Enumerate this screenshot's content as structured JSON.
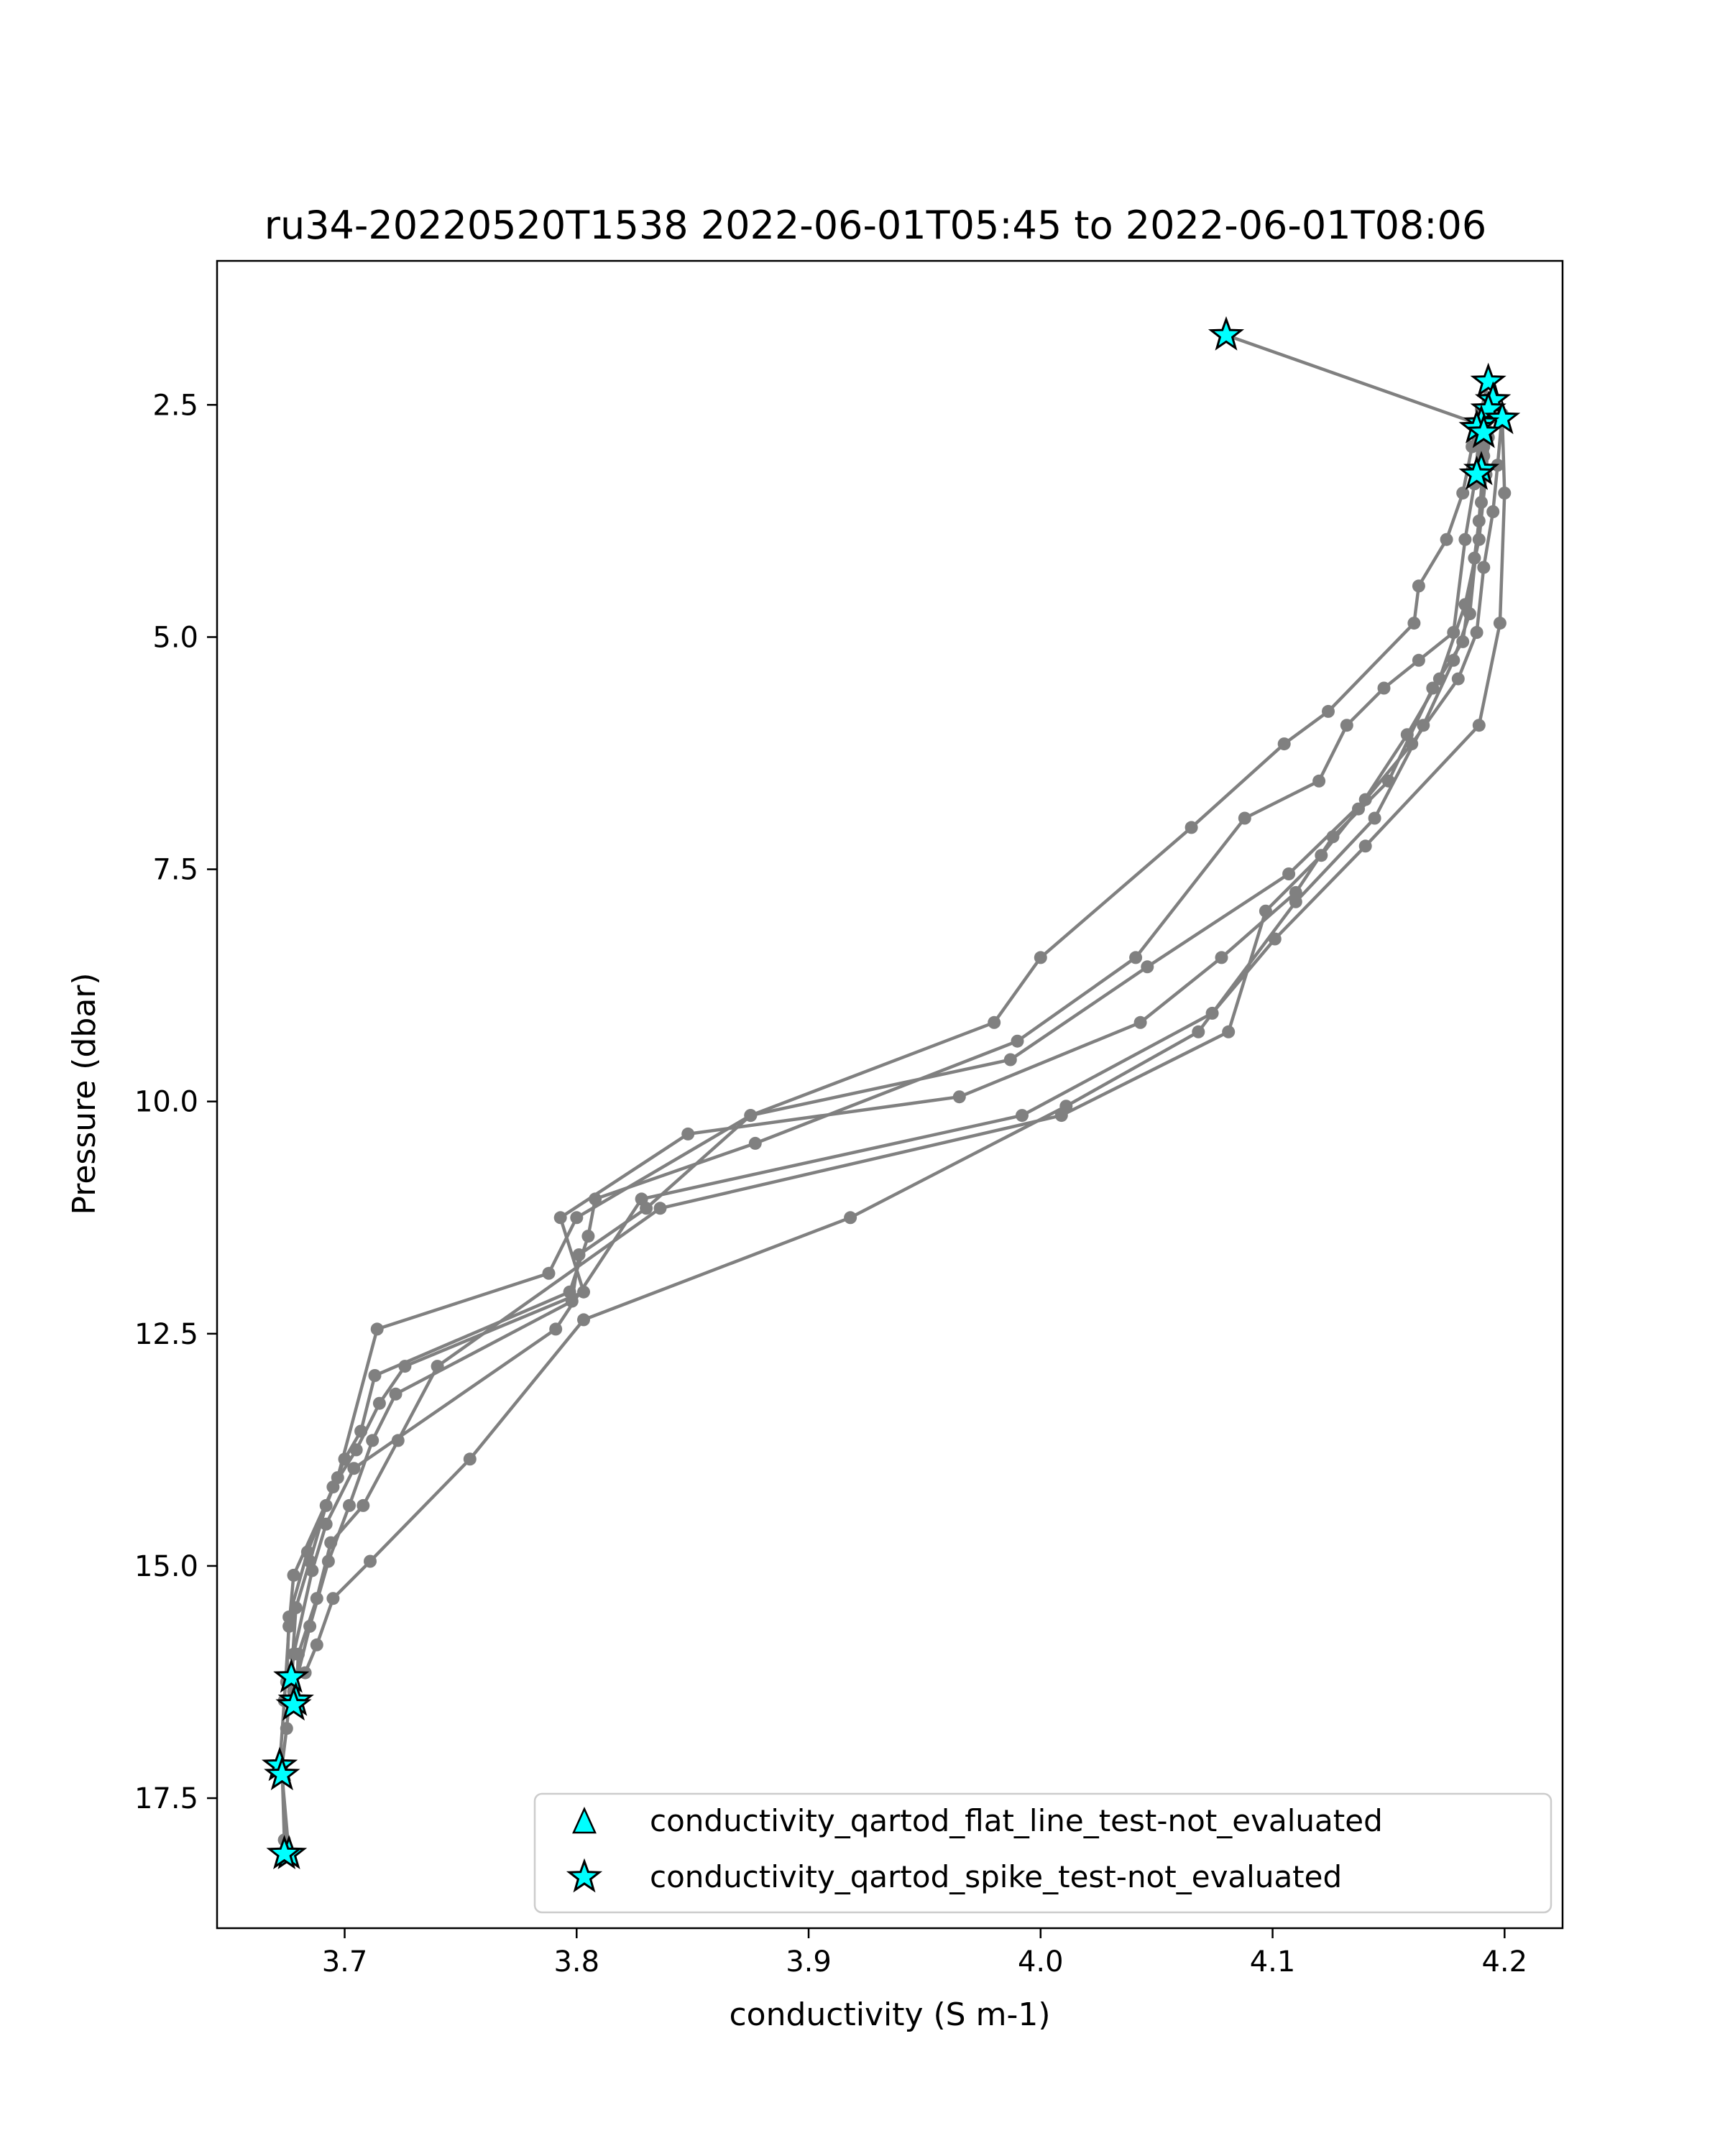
{
  "chart_data": {
    "type": "line",
    "title": "ru34-20220520T1538 2022-06-01T05:45 to 2022-06-01T08:06",
    "xlabel": "conductivity (S m-1)",
    "ylabel": "Pressure (dbar)",
    "xlim": [
      3.645,
      4.225
    ],
    "ylim": [
      18.9,
      0.95
    ],
    "y_inverted": true,
    "x_ticks": [
      "3.7",
      "3.8",
      "3.9",
      "4.0",
      "4.1",
      "4.2"
    ],
    "x_tick_values": [
      3.7,
      3.8,
      3.9,
      4.0,
      4.1,
      4.2
    ],
    "y_ticks": [
      "2.5",
      "5.0",
      "7.5",
      "10.0",
      "12.5",
      "15.0",
      "17.5"
    ],
    "y_tick_values": [
      2.5,
      5.0,
      7.5,
      10.0,
      12.5,
      15.0,
      17.5
    ],
    "grid": false,
    "legend_position": "lower-right",
    "line_color": "#808080",
    "marker_color": "#00ffff",
    "legend": [
      {
        "label": "conductivity_qartod_flat_line_test-not_evaluated",
        "marker": "triangle"
      },
      {
        "label": "conductivity_qartod_spike_test-not_evaluated",
        "marker": "star"
      }
    ],
    "series": [
      {
        "values": [
          [
            4.08,
            1.75
          ],
          [
            4.188,
            2.7
          ],
          [
            4.186,
            2.95
          ],
          [
            4.182,
            3.45
          ],
          [
            4.175,
            3.95
          ],
          [
            4.163,
            4.45
          ],
          [
            4.161,
            4.85
          ],
          [
            4.124,
            5.8
          ],
          [
            4.105,
            6.15
          ],
          [
            4.065,
            7.05
          ],
          [
            4.0,
            8.45
          ],
          [
            3.98,
            9.15
          ],
          [
            3.875,
            10.15
          ],
          [
            3.8,
            11.25
          ],
          [
            3.788,
            11.85
          ],
          [
            3.714,
            12.45
          ],
          [
            3.697,
            14.05
          ],
          [
            3.678,
            15.1
          ],
          [
            3.676,
            15.65
          ],
          [
            3.674,
            16.45
          ],
          [
            3.672,
            17.15
          ],
          [
            3.673,
            17.25
          ],
          [
            3.676,
            18.1
          ]
        ]
      },
      {
        "values": [
          [
            4.193,
            2.25
          ],
          [
            4.19,
            2.55
          ],
          [
            4.189,
            2.85
          ],
          [
            4.187,
            3.35
          ],
          [
            4.183,
            3.95
          ],
          [
            4.178,
            4.95
          ],
          [
            4.163,
            5.25
          ],
          [
            4.148,
            5.55
          ],
          [
            4.132,
            5.95
          ],
          [
            4.12,
            6.55
          ],
          [
            4.088,
            6.95
          ],
          [
            4.041,
            8.45
          ],
          [
            3.99,
            9.35
          ],
          [
            3.877,
            10.45
          ],
          [
            3.808,
            11.05
          ],
          [
            3.805,
            11.45
          ],
          [
            3.797,
            12.05
          ],
          [
            3.713,
            12.95
          ],
          [
            3.707,
            13.55
          ],
          [
            3.7,
            13.85
          ],
          [
            3.692,
            14.35
          ],
          [
            3.685,
            14.95
          ],
          [
            3.679,
            15.45
          ],
          [
            3.677,
            16.2
          ]
        ]
      },
      {
        "values": [
          [
            4.195,
            2.45
          ],
          [
            4.193,
            2.85
          ],
          [
            4.192,
            3.25
          ],
          [
            4.189,
            3.95
          ],
          [
            4.183,
            4.65
          ],
          [
            4.172,
            5.45
          ],
          [
            4.158,
            6.05
          ],
          [
            4.137,
            6.85
          ],
          [
            4.121,
            7.35
          ],
          [
            4.097,
            7.95
          ],
          [
            4.081,
            9.25
          ],
          [
            4.009,
            10.15
          ],
          [
            3.836,
            11.15
          ],
          [
            3.74,
            12.85
          ],
          [
            3.723,
            13.65
          ],
          [
            3.708,
            14.35
          ],
          [
            3.694,
            14.75
          ],
          [
            3.688,
            15.35
          ],
          [
            3.68,
            15.95
          ],
          [
            3.679,
            16.5
          ]
        ]
      },
      {
        "values": [
          [
            4.193,
            2.55
          ],
          [
            4.191,
            2.95
          ],
          [
            4.19,
            3.55
          ],
          [
            4.187,
            4.15
          ],
          [
            4.182,
            5.05
          ],
          [
            4.169,
            5.55
          ],
          [
            4.15,
            6.55
          ],
          [
            4.126,
            7.15
          ],
          [
            4.11,
            7.75
          ],
          [
            4.078,
            8.45
          ],
          [
            4.043,
            9.15
          ],
          [
            3.965,
            9.95
          ],
          [
            3.848,
            10.35
          ],
          [
            3.793,
            11.25
          ],
          [
            3.803,
            12.05
          ],
          [
            3.726,
            12.85
          ],
          [
            3.715,
            13.25
          ],
          [
            3.705,
            13.75
          ],
          [
            3.695,
            14.15
          ],
          [
            3.684,
            14.85
          ],
          [
            3.676,
            15.55
          ],
          [
            3.675,
            16.25
          ]
        ]
      },
      {
        "values": [
          [
            4.199,
            2.6
          ],
          [
            4.197,
            3.15
          ],
          [
            4.195,
            3.65
          ],
          [
            4.191,
            4.25
          ],
          [
            4.188,
            4.95
          ],
          [
            4.18,
            5.45
          ],
          [
            4.16,
            6.15
          ],
          [
            4.14,
            6.75
          ],
          [
            4.107,
            7.55
          ],
          [
            4.046,
            8.55
          ],
          [
            3.987,
            9.55
          ],
          [
            3.875,
            10.15
          ],
          [
            3.83,
            11.15
          ],
          [
            3.801,
            11.65
          ],
          [
            3.798,
            12.15
          ],
          [
            3.722,
            13.15
          ],
          [
            3.712,
            13.65
          ],
          [
            3.702,
            14.35
          ],
          [
            3.693,
            14.95
          ],
          [
            3.685,
            15.65
          ],
          [
            3.678,
            16.35
          ]
        ]
      },
      {
        "values": [
          [
            4.19,
            2.85
          ],
          [
            4.191,
            3.05
          ],
          [
            4.189,
            3.75
          ],
          [
            4.185,
            4.75
          ],
          [
            4.178,
            5.25
          ],
          [
            4.165,
            5.95
          ],
          [
            4.144,
            6.95
          ],
          [
            4.11,
            7.85
          ],
          [
            4.068,
            9.25
          ],
          [
            4.011,
            10.05
          ],
          [
            3.918,
            11.25
          ],
          [
            3.803,
            12.35
          ],
          [
            3.754,
            13.85
          ],
          [
            3.711,
            14.95
          ],
          [
            3.695,
            15.35
          ],
          [
            3.688,
            15.85
          ],
          [
            3.683,
            16.15
          ]
        ]
      },
      {
        "values": [
          [
            4.199,
            2.65
          ],
          [
            4.2,
            3.45
          ],
          [
            4.198,
            4.85
          ],
          [
            4.189,
            5.95
          ],
          [
            4.14,
            7.25
          ],
          [
            4.101,
            8.25
          ],
          [
            4.074,
            9.05
          ],
          [
            3.992,
            10.15
          ],
          [
            3.828,
            11.05
          ],
          [
            3.791,
            12.45
          ],
          [
            3.704,
            13.95
          ],
          [
            3.692,
            14.55
          ],
          [
            3.686,
            15.05
          ],
          [
            3.678,
            15.95
          ],
          [
            3.675,
            16.75
          ],
          [
            3.673,
            17.15
          ],
          [
            3.674,
            17.95
          ]
        ]
      }
    ],
    "flagged_points": [
      {
        "x": 4.08,
        "y": 1.75
      },
      {
        "x": 4.193,
        "y": 2.25
      },
      {
        "x": 4.195,
        "y": 2.45
      },
      {
        "x": 4.193,
        "y": 2.55
      },
      {
        "x": 4.199,
        "y": 2.65
      },
      {
        "x": 4.19,
        "y": 2.7
      },
      {
        "x": 4.188,
        "y": 2.75
      },
      {
        "x": 4.191,
        "y": 2.8
      },
      {
        "x": 4.19,
        "y": 3.2
      },
      {
        "x": 4.188,
        "y": 3.25
      },
      {
        "x": 3.677,
        "y": 16.2
      },
      {
        "x": 3.679,
        "y": 16.45
      },
      {
        "x": 3.678,
        "y": 16.5
      },
      {
        "x": 3.672,
        "y": 17.15
      },
      {
        "x": 3.673,
        "y": 17.25
      },
      {
        "x": 3.676,
        "y": 18.1
      },
      {
        "x": 3.674,
        "y": 18.1
      }
    ]
  }
}
